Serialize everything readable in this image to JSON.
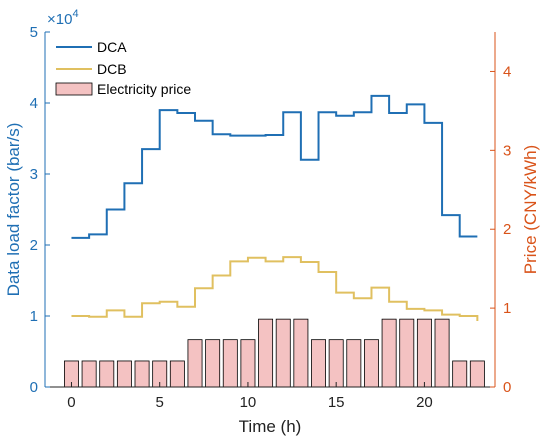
{
  "chart_data": {
    "type": "bar+line",
    "x": [
      0,
      1,
      2,
      3,
      4,
      5,
      6,
      7,
      8,
      9,
      10,
      11,
      12,
      13,
      14,
      15,
      16,
      17,
      18,
      19,
      20,
      21,
      22,
      23
    ],
    "xlabel": "Time (h)",
    "xlim": [
      -1.5,
      24
    ],
    "xticks": [
      0,
      5,
      10,
      15,
      20
    ],
    "ylabel_left": "Data load factor (bar/s)",
    "ylim_left": [
      0,
      50000
    ],
    "yticks_left": [
      0,
      1,
      2,
      3,
      4,
      5
    ],
    "left_multiplier": "×10",
    "left_multiplier_exp": "4",
    "ylabel_right": "Price (CNY/kWh)",
    "ylim_right": [
      0,
      4.5
    ],
    "yticks_right": [
      0,
      1,
      2,
      3,
      4
    ],
    "series": [
      {
        "name": "DCA",
        "type": "stairs",
        "axis": "left",
        "color": "#1f6fb4",
        "values": [
          21000,
          21500,
          25000,
          28700,
          33500,
          39000,
          38600,
          37500,
          35600,
          35400,
          35400,
          35500,
          38700,
          32000,
          38700,
          38200,
          38700,
          41000,
          38600,
          39800,
          37200,
          24200,
          21200,
          21200
        ]
      },
      {
        "name": "DCB",
        "type": "stairs",
        "axis": "left",
        "color": "#e0c060",
        "values": [
          10000,
          9900,
          10800,
          9900,
          11800,
          12000,
          11300,
          13900,
          15700,
          17700,
          18200,
          17700,
          18300,
          17600,
          16200,
          13300,
          12500,
          14000,
          12000,
          11000,
          10800,
          10200,
          10000,
          9300
        ]
      },
      {
        "name": "Electricity price",
        "type": "bar",
        "axis": "right",
        "color": "#f4c2c2",
        "edgecolor": "#000000",
        "values": [
          0.33,
          0.33,
          0.33,
          0.33,
          0.33,
          0.33,
          0.33,
          0.6,
          0.6,
          0.6,
          0.6,
          0.86,
          0.86,
          0.86,
          0.6,
          0.6,
          0.6,
          0.6,
          0.86,
          0.86,
          0.86,
          0.86,
          0.33,
          0.33
        ]
      }
    ],
    "legend": "top-left",
    "grid": false
  }
}
